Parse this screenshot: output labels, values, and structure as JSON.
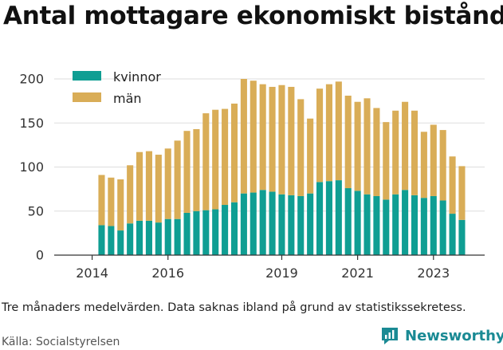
{
  "title": "Antal mottagare ekonomiskt bistånd",
  "note": "Tre månaders medelvärden. Data saknas ibland på grund av statistikssekretess.",
  "source": "Källa: Socialstyrelsen",
  "brand": {
    "name": "Newsworthy",
    "icon": "newsworthy-logo-icon"
  },
  "colors": {
    "kvinnor": "#0f9e93",
    "man": "#d9ad57",
    "grid": "#dddddd",
    "axis": "#333333"
  },
  "chart_data": {
    "type": "bar",
    "stacked": true,
    "ylim": [
      0,
      200
    ],
    "yticks": [
      "0",
      "50",
      "100",
      "150",
      "200"
    ],
    "xticks": [
      {
        "label": "2014",
        "x": 2014.0
      },
      {
        "label": "2016",
        "x": 2016.0
      },
      {
        "label": "2019",
        "x": 2019.0
      },
      {
        "label": "2021",
        "x": 2021.0
      },
      {
        "label": "2023",
        "x": 2023.0
      }
    ],
    "legend": {
      "position": "top-left",
      "entries": [
        "kvinnor",
        "män"
      ]
    },
    "grid": true,
    "x": [
      2014.25,
      2014.5,
      2014.75,
      2015.0,
      2015.25,
      2015.5,
      2015.75,
      2016.0,
      2016.25,
      2016.5,
      2016.75,
      2017.0,
      2017.25,
      2017.5,
      2017.75,
      2018.0,
      2018.25,
      2018.5,
      2018.75,
      2019.0,
      2019.25,
      2019.5,
      2019.75,
      2020.0,
      2020.25,
      2020.5,
      2020.75,
      2021.0,
      2021.25,
      2021.5,
      2021.75,
      2022.0,
      2022.25,
      2022.5,
      2022.75,
      2023.0,
      2023.25,
      2023.5,
      2023.75,
      2024.0
    ],
    "series": [
      {
        "name": "kvinnor",
        "values": [
          34,
          33,
          28,
          36,
          39,
          39,
          37,
          41,
          41,
          48,
          50,
          51,
          52,
          57,
          60,
          70,
          71,
          74,
          72,
          69,
          68,
          67,
          70,
          83,
          84,
          85,
          76,
          73,
          69,
          67,
          63,
          69,
          74,
          68,
          65,
          67,
          62,
          47,
          40,
          0
        ]
      },
      {
        "name": "män",
        "values": [
          57,
          55,
          58,
          66,
          78,
          79,
          77,
          80,
          89,
          93,
          93,
          110,
          113,
          109,
          112,
          130,
          127,
          120,
          119,
          124,
          123,
          110,
          85,
          106,
          110,
          112,
          105,
          101,
          109,
          100,
          88,
          95,
          100,
          96,
          75,
          81,
          80,
          65,
          61,
          0
        ]
      }
    ]
  }
}
